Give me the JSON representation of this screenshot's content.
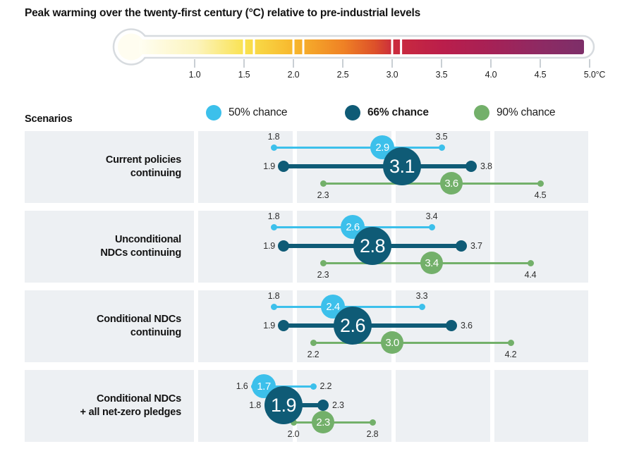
{
  "title": "Peak warming over the twenty-first century (°C) relative to pre-industrial levels",
  "legend": {
    "title": "Scenarios",
    "items": [
      {
        "label": "50% chance",
        "color": "#3cc0eb",
        "bold": false
      },
      {
        "label": "66% chance",
        "color": "#0f5b76",
        "bold": true
      },
      {
        "label": "90% chance",
        "color": "#73b06a",
        "bold": false
      }
    ]
  },
  "thermometer": {
    "unit_label": "°C",
    "outline_color": "#d7dbdf",
    "threshold_marks": [
      1.5,
      1.6,
      2.0,
      2.1,
      3.0,
      3.09
    ],
    "gradient_stops": [
      {
        "at": 0,
        "color": "#fffef2"
      },
      {
        "at": 0.13,
        "color": "#fcf4bd"
      },
      {
        "at": 0.24,
        "color": "#f9e14d"
      },
      {
        "at": 0.35,
        "color": "#f7b62c"
      },
      {
        "at": 0.46,
        "color": "#ef8125"
      },
      {
        "at": 0.53,
        "color": "#dd512a"
      },
      {
        "at": 0.57,
        "color": "#cb2c3d"
      },
      {
        "at": 0.68,
        "color": "#bb1e4b"
      },
      {
        "at": 0.79,
        "color": "#a62156"
      },
      {
        "at": 0.9,
        "color": "#8e2a63"
      },
      {
        "at": 1,
        "color": "#7d2f69"
      }
    ]
  },
  "chart_data": {
    "type": "range-dot",
    "title": "Peak warming over the twenty-first century (°C) relative to pre-industrial levels",
    "xlabel": "°C relative to pre-industrial levels",
    "x_axis": {
      "min": 1.0,
      "max": 5.0,
      "ticks": [
        {
          "v": 1.0,
          "label": "1.0"
        },
        {
          "v": 1.5,
          "label": "1.5"
        },
        {
          "v": 2.0,
          "label": "2.0"
        },
        {
          "v": 2.5,
          "label": "2.5"
        },
        {
          "v": 3.0,
          "label": "3.0"
        },
        {
          "v": 3.5,
          "label": "3.5"
        },
        {
          "v": 4.0,
          "label": "4.0"
        },
        {
          "v": 4.5,
          "label": "4.5"
        },
        {
          "v": 5.0,
          "label": "5.0°C"
        }
      ]
    },
    "series_meta": [
      {
        "name": "50% chance",
        "color": "#3cc0eb"
      },
      {
        "name": "66% chance",
        "color": "#0f5b76"
      },
      {
        "name": "90% chance",
        "color": "#73b06a"
      }
    ],
    "scenarios": [
      {
        "label": "Current policies continuing",
        "label_lines": [
          "Current policies",
          "continuing"
        ],
        "ranges": [
          {
            "chance": "50% chance",
            "low": 1.8,
            "mid": 2.9,
            "high": 3.5,
            "label_pos": "above"
          },
          {
            "chance": "66% chance",
            "low": 1.9,
            "mid": 3.1,
            "high": 3.8,
            "label_pos": "side"
          },
          {
            "chance": "90% chance",
            "low": 2.3,
            "mid": 3.6,
            "high": 4.5,
            "label_pos": "below"
          }
        ]
      },
      {
        "label": "Unconditional NDCs continuing",
        "label_lines": [
          "Unconditional",
          "NDCs continuing"
        ],
        "ranges": [
          {
            "chance": "50% chance",
            "low": 1.8,
            "mid": 2.6,
            "high": 3.4,
            "label_pos": "above"
          },
          {
            "chance": "66% chance",
            "low": 1.9,
            "mid": 2.8,
            "high": 3.7,
            "label_pos": "side"
          },
          {
            "chance": "90% chance",
            "low": 2.3,
            "mid": 3.4,
            "high": 4.4,
            "label_pos": "below"
          }
        ]
      },
      {
        "label": "Conditional NDCs continuing",
        "label_lines": [
          "Conditional NDCs",
          "continuing"
        ],
        "ranges": [
          {
            "chance": "50% chance",
            "low": 1.8,
            "mid": 2.4,
            "high": 3.3,
            "label_pos": "above"
          },
          {
            "chance": "66% chance",
            "low": 1.9,
            "mid": 2.6,
            "high": 3.6,
            "label_pos": "side"
          },
          {
            "chance": "90% chance",
            "low": 2.2,
            "mid": 3.0,
            "high": 4.2,
            "label_pos": "below"
          }
        ]
      },
      {
        "label": "Conditional NDCs + all net-zero pledges",
        "label_lines": [
          "Conditional NDCs",
          "+ all net-zero pledges"
        ],
        "ranges": [
          {
            "chance": "50% chance",
            "low": 1.6,
            "mid": 1.7,
            "high": 2.2,
            "label_pos": "side"
          },
          {
            "chance": "66% chance",
            "low": 1.8,
            "mid": 1.9,
            "high": 2.3,
            "label_pos": "side"
          },
          {
            "chance": "90% chance",
            "low": 2.0,
            "mid": 2.3,
            "high": 2.8,
            "label_pos": "below"
          }
        ]
      }
    ]
  },
  "colors": {
    "row_panel": "#edf0f3",
    "axis_tick": "#c9cfd4",
    "text_dark": "#141414",
    "value_label": "#2f2f2f"
  }
}
